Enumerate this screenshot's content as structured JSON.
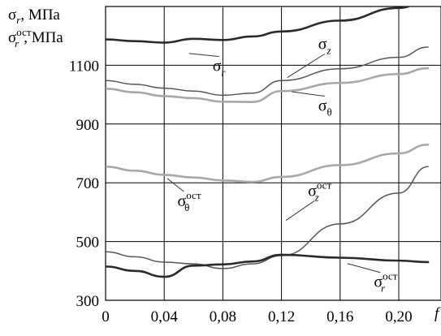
{
  "chart_data": {
    "type": "line",
    "ylabel_lines": [
      {
        "sym": "σ",
        "sub": "r",
        "sup": "",
        "unit": ", МПа"
      },
      {
        "sym": "σ",
        "sub": "r",
        "sup": "ост",
        "unit": ",  МПа"
      }
    ],
    "xlabel": "f",
    "xlim": [
      0,
      0.22
    ],
    "ylim": [
      300,
      1300
    ],
    "x_ticks": [
      0,
      0.04,
      0.08,
      0.12,
      0.16,
      0.2
    ],
    "x_tick_labels": [
      "0",
      "0,04",
      "0,08",
      "0,12",
      "0,16",
      "0,20"
    ],
    "y_ticks": [
      300,
      500,
      700,
      900,
      1100
    ],
    "y_tick_labels": [
      "300",
      "500",
      "700",
      "900",
      "1100"
    ],
    "grid": true,
    "series": [
      {
        "key": "sigma_r",
        "color": "#2a2a2a",
        "width": 2.6,
        "points": [
          [
            0,
            1188
          ],
          [
            0.02,
            1182
          ],
          [
            0.04,
            1177
          ],
          [
            0.06,
            1190
          ],
          [
            0.08,
            1186
          ],
          [
            0.1,
            1198
          ],
          [
            0.12,
            1215
          ],
          [
            0.16,
            1252
          ],
          [
            0.2,
            1295
          ],
          [
            0.22,
            1320
          ]
        ]
      },
      {
        "key": "sigma_z",
        "color": "#555555",
        "width": 1.5,
        "points": [
          [
            0,
            1048
          ],
          [
            0.02,
            1035
          ],
          [
            0.04,
            1022
          ],
          [
            0.06,
            1012
          ],
          [
            0.08,
            998
          ],
          [
            0.1,
            1005
          ],
          [
            0.12,
            1048
          ],
          [
            0.16,
            1088
          ],
          [
            0.2,
            1127
          ],
          [
            0.22,
            1162
          ]
        ]
      },
      {
        "key": "sigma_theta",
        "color": "#a8a8a8",
        "width": 2.6,
        "points": [
          [
            0,
            1020
          ],
          [
            0.02,
            1008
          ],
          [
            0.04,
            995
          ],
          [
            0.06,
            988
          ],
          [
            0.08,
            976
          ],
          [
            0.1,
            975
          ],
          [
            0.12,
            1012
          ],
          [
            0.16,
            1040
          ],
          [
            0.2,
            1070
          ],
          [
            0.22,
            1090
          ]
        ]
      },
      {
        "key": "sigma_theta_ost",
        "color": "#a8a8a8",
        "width": 2.6,
        "points": [
          [
            0,
            755
          ],
          [
            0.02,
            741
          ],
          [
            0.04,
            727
          ],
          [
            0.06,
            718
          ],
          [
            0.08,
            708
          ],
          [
            0.1,
            703
          ],
          [
            0.12,
            720
          ],
          [
            0.16,
            760
          ],
          [
            0.2,
            800
          ],
          [
            0.22,
            830
          ]
        ]
      },
      {
        "key": "sigma_z_ost",
        "color": "#555555",
        "width": 1.5,
        "points": [
          [
            0,
            465
          ],
          [
            0.02,
            448
          ],
          [
            0.04,
            430
          ],
          [
            0.06,
            424
          ],
          [
            0.08,
            408
          ],
          [
            0.1,
            424
          ],
          [
            0.12,
            452
          ],
          [
            0.16,
            560
          ],
          [
            0.2,
            665
          ],
          [
            0.22,
            755
          ]
        ]
      },
      {
        "key": "sigma_r_ost",
        "color": "#2a2a2a",
        "width": 2.6,
        "points": [
          [
            0,
            415
          ],
          [
            0.02,
            400
          ],
          [
            0.04,
            380
          ],
          [
            0.06,
            418
          ],
          [
            0.08,
            422
          ],
          [
            0.1,
            432
          ],
          [
            0.12,
            455
          ],
          [
            0.16,
            445
          ],
          [
            0.2,
            435
          ],
          [
            0.22,
            430
          ]
        ]
      }
    ],
    "annotations": [
      {
        "sym": "σ",
        "sub": "r",
        "sup": "",
        "x": 0.073,
        "y": 1080,
        "ax": 0.057,
        "ay": 1140
      },
      {
        "sym": "σ",
        "sub": "z",
        "sup": "",
        "x": 0.145,
        "y": 1155,
        "ax": 0.124,
        "ay": 1058
      },
      {
        "sym": "σ",
        "sub": "θ",
        "sup": "",
        "x": 0.145,
        "y": 945,
        "ax": 0.127,
        "ay": 1010
      },
      {
        "sym": "σ",
        "sub": "θ",
        "sup": "ост",
        "x": 0.049,
        "y": 620,
        "ax": 0.042,
        "ay": 715
      },
      {
        "sym": "σ",
        "sub": "z",
        "sup": "ост",
        "x": 0.138,
        "y": 655,
        "ax": 0.123,
        "ay": 572
      },
      {
        "sym": "σ",
        "sub": "r",
        "sup": "ост",
        "x": 0.183,
        "y": 345,
        "ax": 0.165,
        "ay": 425
      }
    ]
  }
}
